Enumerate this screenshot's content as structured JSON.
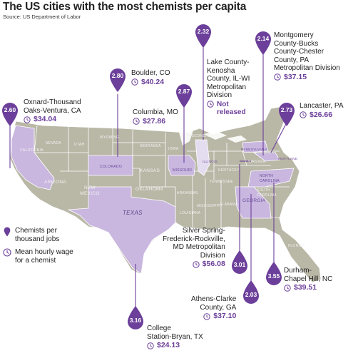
{
  "title": "The US cities with the most chemists per capita",
  "source": "Source: US Department of Labor",
  "colors": {
    "pin": "#6b3f9a",
    "highlight": "#c9b7df",
    "map": "#b9b7a6",
    "border": "#ffffff"
  },
  "legend": {
    "pin_label": "Chemists per thousand jobs",
    "wage_label": "Mean hourly wage for a chemist",
    "pin_icon": "map-pin-icon",
    "wage_icon": "clock-icon"
  },
  "states": {
    "california": "CALIFORNIA",
    "nevada": "NEVADA",
    "utah": "UTAH",
    "arizona": "ARIZONA",
    "new_mexico": "NEW MEXICO",
    "colorado": "COLORADO",
    "kansas": "KANSAS",
    "nebraska": "NEBRASKA",
    "oklahoma": "OKLAHOMA",
    "texas": "TEXAS",
    "missouri": "MISSOURI",
    "illinois": "ILLINOIS",
    "arkansas": "ARKANSAS",
    "louisiana": "LOUISIANA",
    "georgia": "GEORGIA",
    "north_carolina": "NORTH CAROLINA",
    "south_carolina": "SOUTH CAROLINA",
    "virginia": "VIRGINIA",
    "pennsylvania": "PENNSYLVANIA",
    "maryland": "MARYLAND",
    "florida": "FLORIDA",
    "alabama": "ALABAMA",
    "mississippi": "MISSISSIPPI",
    "tennessee": "TENNESSEE",
    "kentucky": "KENTUCKY",
    "wisconsin": "WISCONSIN",
    "iowa": "IOWA",
    "wyoming": "WYOMING"
  },
  "cities": [
    {
      "key": "oxnard",
      "value": "2.60",
      "lines": [
        "Oxnard-Thousand",
        "Oaks-Ventura, CA"
      ],
      "wage": "$34.04"
    },
    {
      "key": "boulder",
      "value": "2.80",
      "lines": [
        "Boulder, CO"
      ],
      "wage": "$40.24"
    },
    {
      "key": "columbia",
      "value": "2.87",
      "lines": [
        "Columbia, MO"
      ],
      "wage": "$27.86"
    },
    {
      "key": "lake",
      "value": "2.32",
      "lines": [
        "Lake County-",
        "Kenosha",
        "County, IL-WI",
        "Metropolitan",
        "Division"
      ],
      "wage": "Not released"
    },
    {
      "key": "montgomery",
      "value": "2.14",
      "lines": [
        "Montgomery",
        "County-Bucks",
        "County-Chester",
        "County, PA",
        "Metropolitan Division"
      ],
      "wage": "$37.15"
    },
    {
      "key": "lancaster",
      "value": "2.73",
      "lines": [
        "Lancaster, PA"
      ],
      "wage": "$26.66"
    },
    {
      "key": "silver",
      "value": "3.01",
      "lines": [
        "Silver Spring-",
        "Frederick-Rockville,",
        "MD Metropolitan",
        "Division"
      ],
      "wage": "$56.08"
    },
    {
      "key": "durham",
      "value": "3.55",
      "lines": [
        "Durham-",
        "Chapel Hill, NC"
      ],
      "wage": "$39.51"
    },
    {
      "key": "athens",
      "value": "2.03",
      "lines": [
        "Athens-Clarke",
        "County, GA"
      ],
      "wage": "$37.10"
    },
    {
      "key": "college",
      "value": "3.16",
      "lines": [
        "College",
        "Station-Bryan, TX"
      ],
      "wage": "$24.13"
    }
  ]
}
